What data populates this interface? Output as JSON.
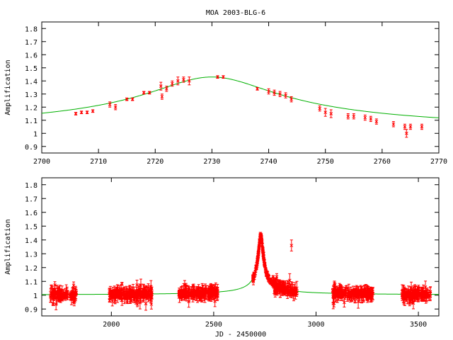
{
  "chart_data": [
    {
      "type": "scatter",
      "title": "MOA 2003-BLG-6",
      "xlabel": "",
      "ylabel": "Amplification",
      "xlim": [
        2700,
        2770
      ],
      "ylim": [
        0.85,
        1.85
      ],
      "xticks": [
        2700,
        2710,
        2720,
        2730,
        2740,
        2750,
        2760,
        2770
      ],
      "yticks": [
        0.9,
        1,
        1.1,
        1.2,
        1.3,
        1.4,
        1.5,
        1.6,
        1.7,
        1.8
      ],
      "ytick_labels": [
        "0.9",
        "1",
        "1.1",
        "1.2",
        "1.3",
        "1.4",
        "1.5",
        "1.6",
        "1.7",
        "1.8"
      ],
      "model": {
        "name": "",
        "color": "#00b000",
        "t0": 2730,
        "amp_peak": 1.43,
        "width": 14.5
      },
      "points": {
        "color": "#ff0000",
        "x": [
          2706,
          2707,
          2708,
          2709,
          2712,
          2713,
          2715,
          2716,
          2718,
          2719,
          2721,
          2721.2,
          2722,
          2723,
          2724,
          2725,
          2726,
          2731,
          2732,
          2738,
          2740,
          2741,
          2742,
          2743,
          2744,
          2749,
          2750,
          2751,
          2754,
          2755,
          2757,
          2758,
          2759,
          2762,
          2764,
          2764.3,
          2765,
          2767
        ],
        "y": [
          1.15,
          1.16,
          1.16,
          1.17,
          1.22,
          1.2,
          1.26,
          1.26,
          1.31,
          1.31,
          1.36,
          1.28,
          1.34,
          1.38,
          1.4,
          1.41,
          1.4,
          1.43,
          1.43,
          1.34,
          1.32,
          1.31,
          1.3,
          1.29,
          1.26,
          1.19,
          1.16,
          1.15,
          1.13,
          1.13,
          1.12,
          1.11,
          1.09,
          1.07,
          1.05,
          1.0,
          1.05,
          1.05
        ],
        "err": [
          0.01,
          0.01,
          0.01,
          0.01,
          0.02,
          0.02,
          0.01,
          0.01,
          0.01,
          0.01,
          0.03,
          0.02,
          0.02,
          0.02,
          0.03,
          0.02,
          0.03,
          0.01,
          0.01,
          0.01,
          0.02,
          0.02,
          0.02,
          0.02,
          0.02,
          0.02,
          0.03,
          0.03,
          0.02,
          0.02,
          0.02,
          0.02,
          0.02,
          0.02,
          0.02,
          0.03,
          0.02,
          0.02
        ]
      }
    },
    {
      "type": "scatter",
      "title": "",
      "xlabel": "JD - 2450000",
      "ylabel": "Amplification",
      "xlim": [
        1660,
        3600
      ],
      "ylim": [
        0.85,
        1.85
      ],
      "xticks": [
        2000,
        2500,
        3000,
        3500
      ],
      "yticks": [
        0.9,
        1,
        1.1,
        1.2,
        1.3,
        1.4,
        1.5,
        1.6,
        1.7,
        1.8
      ],
      "ytick_labels": [
        "0.9",
        "1",
        "1.1",
        "1.2",
        "1.3",
        "1.4",
        "1.5",
        "1.6",
        "1.7",
        "1.8"
      ],
      "model": {
        "name": "",
        "color": "#00b000",
        "t0": 2730,
        "amp_peak": 1.43,
        "width": 14.5
      },
      "seasons": [
        [
          1700,
          1790
        ],
        [
          1800,
          1830
        ],
        [
          1990,
          2200
        ],
        [
          2330,
          2520
        ],
        [
          2690,
          2910
        ],
        [
          3080,
          3280
        ],
        [
          3420,
          3560
        ]
      ],
      "outliers": {
        "x": [
          2880
        ],
        "y": [
          1.36
        ]
      },
      "points": {
        "color": "#ff0000"
      }
    }
  ]
}
